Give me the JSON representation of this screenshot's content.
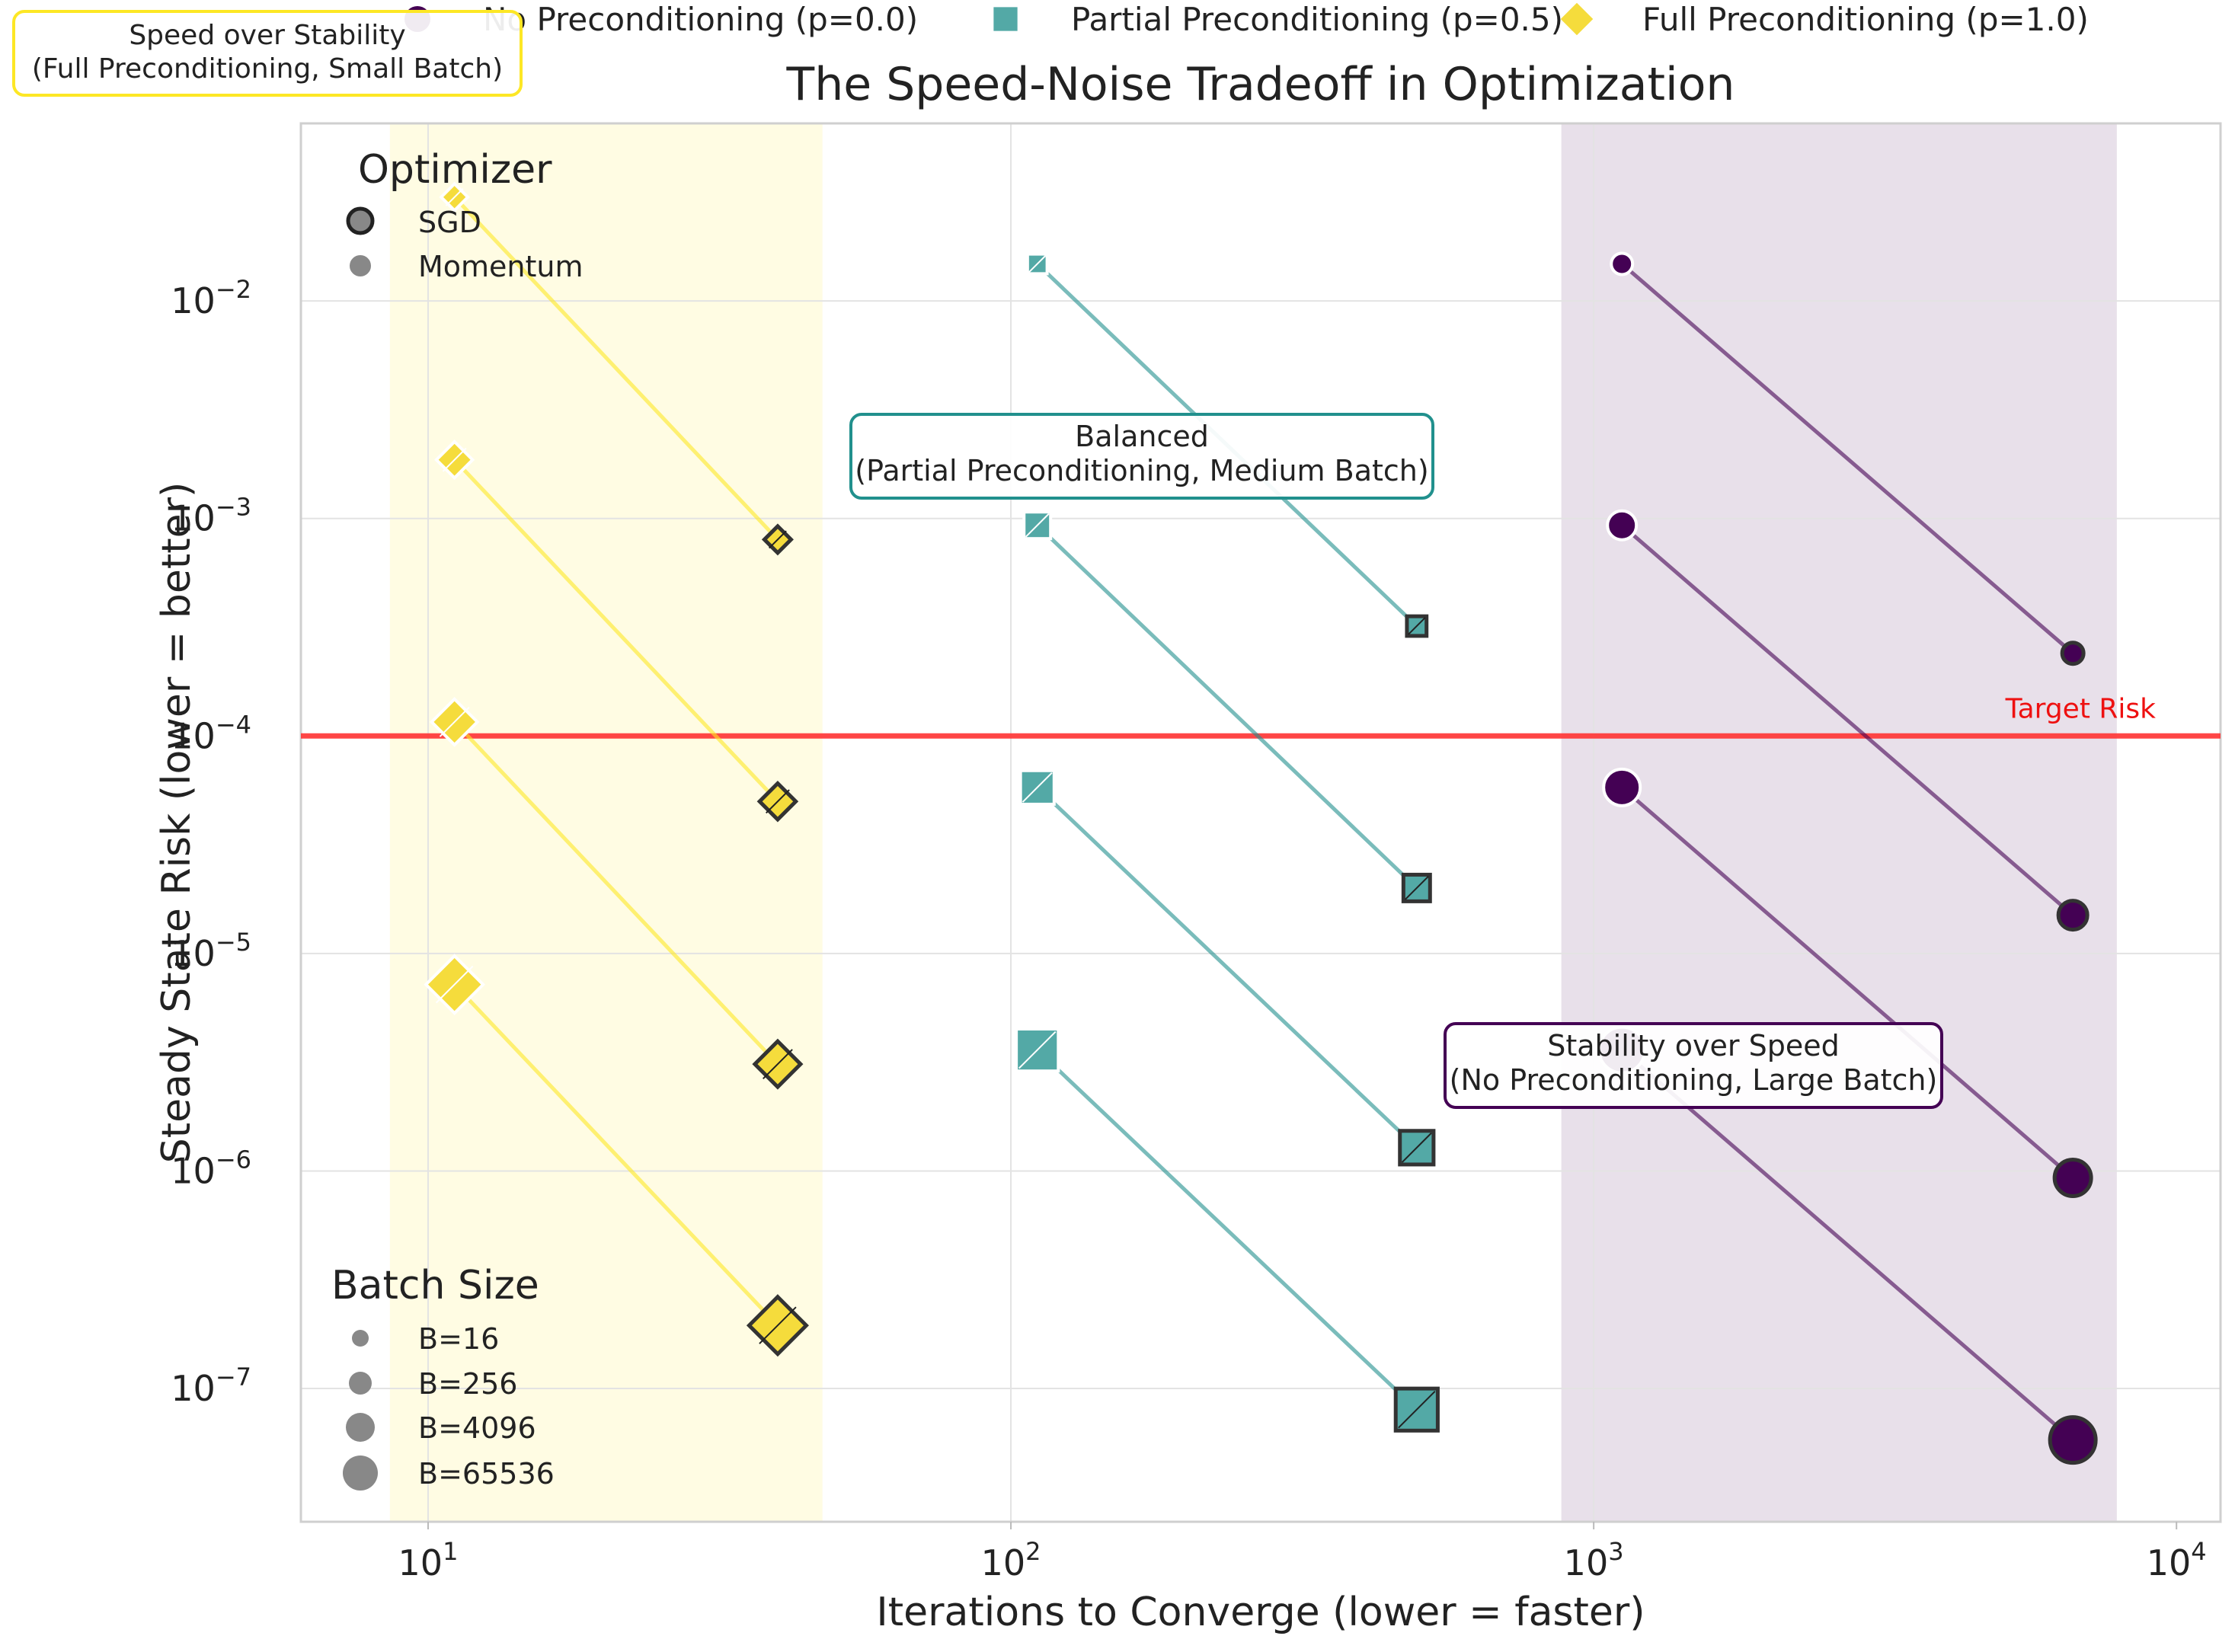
{
  "chart_data": {
    "type": "scatter",
    "title": "The Speed-Noise Tradeoff in Optimization",
    "xlabel": "Iterations to Converge (lower = faster)",
    "ylabel": "Steady State Risk (lower = better)",
    "xscale": "log",
    "yscale": "log",
    "xlim": [
      6.05,
      11900
    ],
    "ylim": [
      2.44e-08,
      0.0655
    ],
    "x_ticks": [
      {
        "value": 10,
        "base": "10",
        "exp": "1"
      },
      {
        "value": 100,
        "base": "10",
        "exp": "2"
      },
      {
        "value": 1000,
        "base": "10",
        "exp": "3"
      },
      {
        "value": 10000,
        "base": "10",
        "exp": "4"
      }
    ],
    "y_ticks": [
      {
        "value": 1e-07,
        "base": "10",
        "exp": "−7"
      },
      {
        "value": 1e-06,
        "base": "10",
        "exp": "−6"
      },
      {
        "value": 1e-05,
        "base": "10",
        "exp": "−5"
      },
      {
        "value": 0.0001,
        "base": "10",
        "exp": "−4"
      },
      {
        "value": 0.001,
        "base": "10",
        "exp": "−3"
      },
      {
        "value": 0.01,
        "base": "10",
        "exp": "−2"
      }
    ],
    "grid": true,
    "series": [
      {
        "name": "No Preconditioning (p=0.0)",
        "color": "#440154",
        "fill": "#440154",
        "marker": "circle",
        "lines": [
          {
            "batch": 16,
            "points": [
              [
                1118,
                0.0148
              ],
              [
                6640,
                0.00024
              ]
            ]
          },
          {
            "batch": 256,
            "points": [
              [
                1118,
                0.00093
              ],
              [
                6640,
                1.5e-05
              ]
            ]
          },
          {
            "batch": 4096,
            "points": [
              [
                1118,
                5.8e-05
              ],
              [
                6640,
                9.3e-07
              ]
            ]
          },
          {
            "batch": 65536,
            "points": [
              [
                1118,
                3.6e-06
              ],
              [
                6640,
                5.8e-08
              ]
            ]
          }
        ]
      },
      {
        "name": "Partial Preconditioning (p=0.5)",
        "color": "#21908d",
        "fill": "#53a9a6",
        "marker": "square",
        "lines": [
          {
            "batch": 16,
            "points": [
              [
                111,
                0.0148
              ],
              [
                497,
                0.00032
              ]
            ]
          },
          {
            "batch": 256,
            "points": [
              [
                111,
                0.00093
              ],
              [
                497,
                2e-05
              ]
            ]
          },
          {
            "batch": 4096,
            "points": [
              [
                111,
                5.8e-05
              ],
              [
                497,
                1.28e-06
              ]
            ]
          },
          {
            "batch": 65536,
            "points": [
              [
                111,
                3.6e-06
              ],
              [
                497,
                8e-08
              ]
            ]
          }
        ]
      },
      {
        "name": "Full Preconditioning (p=1.0)",
        "color": "#fde725",
        "fill": "#f5dc3c",
        "marker": "diamond",
        "lines": [
          {
            "batch": 16,
            "points": [
              [
                11.1,
                0.03
              ],
              [
                39.8,
                0.0008
              ]
            ]
          },
          {
            "batch": 256,
            "points": [
              [
                11.1,
                0.00186
              ],
              [
                39.8,
                5e-05
              ]
            ]
          },
          {
            "batch": 4096,
            "points": [
              [
                11.1,
                0.000116
              ],
              [
                39.8,
                3.1e-06
              ]
            ]
          },
          {
            "batch": 65536,
            "points": [
              [
                11.1,
                7.2e-06
              ],
              [
                39.8,
                1.95e-07
              ]
            ]
          }
        ]
      }
    ],
    "target_line": {
      "value": 0.0001,
      "label": "Target Risk",
      "color": "#ff3333"
    },
    "regions": [
      {
        "name": "fast",
        "x_range": [
          8.6,
          47.5
        ],
        "color": "#fde725",
        "opacity": 0.13
      },
      {
        "name": "stable",
        "x_range": [
          880,
          7900
        ],
        "color": "#440154",
        "opacity": 0.12
      }
    ],
    "annotations": [
      {
        "id": "fast",
        "lines": [
          "Speed over Stability",
          "(Full Preconditioning, Small Batch)"
        ],
        "border": "#fde725"
      },
      {
        "id": "balanced",
        "lines": [
          "Balanced",
          "(Partial Preconditioning, Medium Batch)"
        ],
        "border": "#21908d"
      },
      {
        "id": "stable",
        "lines": [
          "Stability over Speed",
          "(No Preconditioning, Large Batch)"
        ],
        "border": "#440154"
      }
    ],
    "optimizer_legend": {
      "title": "Optimizer",
      "items": [
        "SGD",
        "Momentum"
      ]
    },
    "batch_legend": {
      "title": "Batch Size",
      "items": [
        "B=16",
        "B=256",
        "B=4096",
        "B=65536"
      ]
    }
  }
}
